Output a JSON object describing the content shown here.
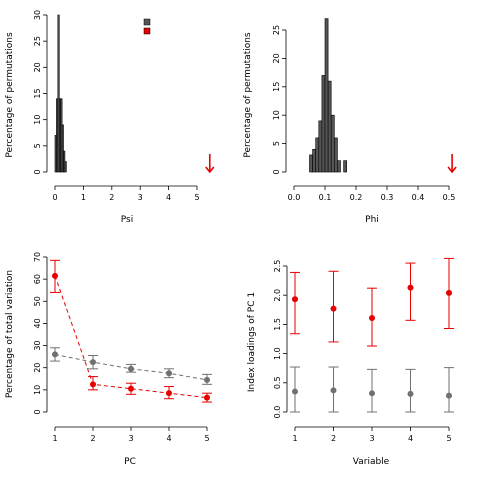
{
  "chart_data": [
    {
      "id": "psi",
      "type": "bar",
      "xlabel": "Psi",
      "ylabel": "Percentage of permutations",
      "xlim": [
        0,
        5
      ],
      "ylim": [
        0,
        30
      ],
      "xticks": [
        "0",
        "1",
        "2",
        "3",
        "4",
        "5"
      ],
      "yticks": [
        "0",
        "5",
        "10",
        "15",
        "20",
        "25",
        "30"
      ],
      "bin_width": 0.05,
      "bins": [
        {
          "x0": 0.0,
          "value": 7
        },
        {
          "x0": 0.05,
          "value": 14
        },
        {
          "x0": 0.1,
          "value": 30
        },
        {
          "x0": 0.15,
          "value": 14
        },
        {
          "x0": 0.2,
          "value": 14
        },
        {
          "x0": 0.25,
          "value": 9
        },
        {
          "x0": 0.3,
          "value": 4
        },
        {
          "x0": 0.35,
          "value": 2
        }
      ],
      "observed_arrow_x": 5.45,
      "legend": {
        "position": "top-right",
        "entries": [
          {
            "color": "#555555"
          },
          {
            "color": "#e60000"
          }
        ]
      }
    },
    {
      "id": "phi",
      "type": "bar",
      "xlabel": "Phi",
      "ylabel": "Percentage of permutations",
      "xlim": [
        0,
        0.5
      ],
      "ylim": [
        0,
        25
      ],
      "xticks": [
        "0.0",
        "0.1",
        "0.2",
        "0.3",
        "0.4",
        "0.5"
      ],
      "yticks": [
        "0",
        "5",
        "10",
        "15",
        "20",
        "25"
      ],
      "bin_width": 0.01,
      "bins": [
        {
          "x0": 0.05,
          "value": 3
        },
        {
          "x0": 0.06,
          "value": 4
        },
        {
          "x0": 0.07,
          "value": 6
        },
        {
          "x0": 0.08,
          "value": 9
        },
        {
          "x0": 0.09,
          "value": 17
        },
        {
          "x0": 0.1,
          "value": 27
        },
        {
          "x0": 0.11,
          "value": 16
        },
        {
          "x0": 0.12,
          "value": 10
        },
        {
          "x0": 0.13,
          "value": 6
        },
        {
          "x0": 0.14,
          "value": 2
        },
        {
          "x0": 0.15,
          "value": 0
        },
        {
          "x0": 0.16,
          "value": 2
        }
      ],
      "observed_arrow_x": 0.51
    },
    {
      "id": "variation",
      "type": "line",
      "xlabel": "PC",
      "ylabel": "Percentage of total variation",
      "xlim": [
        1,
        5
      ],
      "ylim": [
        0,
        70
      ],
      "xticks": [
        "1",
        "2",
        "3",
        "4",
        "5"
      ],
      "yticks": [
        "0",
        "10",
        "20",
        "30",
        "40",
        "50",
        "60",
        "70"
      ],
      "series": [
        {
          "color": "#e60000",
          "x": [
            1,
            2,
            3,
            4,
            5
          ],
          "values": [
            61.5,
            12.5,
            10.5,
            8.5,
            6.5
          ],
          "err_low": [
            54,
            10,
            8,
            6,
            4.5
          ],
          "err_high": [
            68.5,
            16,
            13,
            11.5,
            8.5
          ]
        },
        {
          "color": "#707070",
          "x": [
            1,
            2,
            3,
            4,
            5
          ],
          "values": [
            26,
            22.5,
            19.5,
            17.5,
            14.5
          ],
          "err_low": [
            23,
            19.5,
            18,
            15.5,
            12.5
          ],
          "err_high": [
            29,
            25.5,
            21.5,
            19.5,
            17
          ]
        }
      ]
    },
    {
      "id": "loadings",
      "type": "scatter",
      "xlabel": "Variable",
      "ylabel": "Index loadings of PC 1",
      "xlim": [
        1,
        5
      ],
      "ylim": [
        0,
        2.5
      ],
      "xticks": [
        "1",
        "2",
        "3",
        "4",
        "5"
      ],
      "yticks": [
        "0.0",
        "0.5",
        "1.0",
        "1.5",
        "2.0",
        "2.5"
      ],
      "series": [
        {
          "color": "#e60000",
          "x": [
            1,
            2,
            3,
            4,
            5
          ],
          "values": [
            1.93,
            1.77,
            1.61,
            2.13,
            2.04
          ],
          "err_low": [
            1.34,
            1.2,
            1.13,
            1.57,
            1.43
          ],
          "err_high": [
            2.39,
            2.41,
            2.12,
            2.55,
            2.63
          ]
        },
        {
          "color": "#707070",
          "x": [
            1,
            2,
            3,
            4,
            5
          ],
          "values": [
            0.35,
            0.37,
            0.32,
            0.31,
            0.28
          ],
          "err_low": [
            0.0,
            0.0,
            0.0,
            0.0,
            0.0
          ],
          "err_high": [
            0.77,
            0.77,
            0.73,
            0.73,
            0.76
          ]
        }
      ]
    }
  ]
}
